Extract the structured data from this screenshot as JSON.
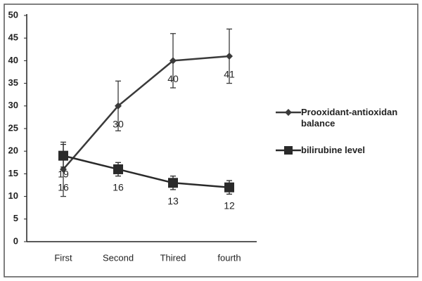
{
  "chart_data": {
    "type": "line",
    "categories": [
      "First",
      "Second",
      "Thired",
      "fourth"
    ],
    "series": [
      {
        "name": "Prooxidant-antioxidan balance",
        "color": "#3a3a3a",
        "marker": "diamond",
        "values": [
          16,
          30,
          40,
          41
        ],
        "errors": [
          6,
          5.5,
          6,
          6
        ]
      },
      {
        "name": "bilirubine level",
        "color": "#2a2a2a",
        "marker": "square",
        "values": [
          19,
          16,
          13,
          12
        ],
        "errors": [
          2.5,
          1.5,
          1.5,
          1.5
        ]
      }
    ],
    "ylim": [
      0,
      50
    ],
    "yticks": [
      0,
      5,
      10,
      15,
      20,
      25,
      30,
      35,
      40,
      45,
      50
    ],
    "legend": "right"
  }
}
